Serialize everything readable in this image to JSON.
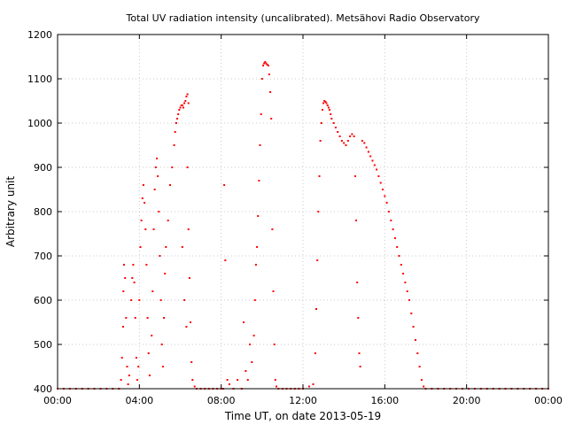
{
  "chart_data": {
    "type": "scatter",
    "title": "Total UV radiation intensity (uncalibrated). Metsähovi Radio Observatory",
    "xlabel": "Time UT, on date 2013-05-19",
    "ylabel": "Arbitrary unit",
    "x_unit": "hours UT",
    "xlim": [
      0,
      24
    ],
    "ylim": [
      400,
      1200
    ],
    "x_ticks": [
      0,
      4,
      8,
      12,
      16,
      20,
      24
    ],
    "x_tick_labels": [
      "00:00",
      "04:00",
      "08:00",
      "12:00",
      "16:00",
      "20:00",
      "00:00"
    ],
    "y_ticks": [
      400,
      500,
      600,
      700,
      800,
      900,
      1000,
      1100,
      1200
    ],
    "y_tick_labels": [
      "400",
      "500",
      "600",
      "700",
      "800",
      "900",
      "1000",
      "1100",
      "1200"
    ],
    "grid": true,
    "marker_color": "#ff0000",
    "series": [
      {
        "points": [
          [
            0.0,
            400
          ],
          [
            0.3,
            400
          ],
          [
            0.6,
            400
          ],
          [
            0.9,
            400
          ],
          [
            1.2,
            400
          ],
          [
            1.5,
            400
          ],
          [
            1.8,
            400
          ],
          [
            2.1,
            400
          ],
          [
            2.4,
            400
          ],
          [
            2.7,
            400
          ],
          [
            3.0,
            400
          ],
          [
            3.1,
            420
          ],
          [
            3.15,
            470
          ],
          [
            3.2,
            540
          ],
          [
            3.22,
            620
          ],
          [
            3.25,
            680
          ],
          [
            3.3,
            650
          ],
          [
            3.35,
            560
          ],
          [
            3.4,
            450
          ],
          [
            3.45,
            410
          ],
          [
            3.5,
            430
          ],
          [
            3.6,
            600
          ],
          [
            3.65,
            650
          ],
          [
            3.7,
            680
          ],
          [
            3.75,
            640
          ],
          [
            3.8,
            560
          ],
          [
            3.85,
            470
          ],
          [
            3.9,
            420
          ],
          [
            3.95,
            450
          ],
          [
            4.0,
            600
          ],
          [
            4.05,
            720
          ],
          [
            4.1,
            780
          ],
          [
            4.15,
            830
          ],
          [
            4.2,
            860
          ],
          [
            4.25,
            820
          ],
          [
            4.3,
            760
          ],
          [
            4.35,
            680
          ],
          [
            4.4,
            560
          ],
          [
            4.45,
            480
          ],
          [
            4.5,
            430
          ],
          [
            4.6,
            520
          ],
          [
            4.65,
            620
          ],
          [
            4.7,
            760
          ],
          [
            4.75,
            850
          ],
          [
            4.8,
            900
          ],
          [
            4.85,
            920
          ],
          [
            4.9,
            880
          ],
          [
            4.95,
            800
          ],
          [
            5.0,
            700
          ],
          [
            5.05,
            600
          ],
          [
            5.1,
            500
          ],
          [
            5.15,
            450
          ],
          [
            5.2,
            560
          ],
          [
            5.25,
            660
          ],
          [
            5.3,
            720
          ],
          [
            5.4,
            780
          ],
          [
            5.5,
            860
          ],
          [
            5.6,
            900
          ],
          [
            5.7,
            950
          ],
          [
            5.75,
            980
          ],
          [
            5.8,
            1000
          ],
          [
            5.85,
            1010
          ],
          [
            5.9,
            1020
          ],
          [
            5.95,
            1030
          ],
          [
            6.0,
            1035
          ],
          [
            6.05,
            1040
          ],
          [
            6.1,
            1040
          ],
          [
            6.15,
            1035
          ],
          [
            6.2,
            1045
          ],
          [
            6.25,
            1050
          ],
          [
            6.3,
            1060
          ],
          [
            6.35,
            1065
          ],
          [
            6.4,
            1045
          ],
          [
            6.1,
            720
          ],
          [
            6.2,
            600
          ],
          [
            6.3,
            540
          ],
          [
            6.35,
            900
          ],
          [
            6.4,
            760
          ],
          [
            6.45,
            650
          ],
          [
            6.5,
            550
          ],
          [
            6.55,
            460
          ],
          [
            6.6,
            420
          ],
          [
            6.7,
            405
          ],
          [
            6.8,
            400
          ],
          [
            7.0,
            400
          ],
          [
            7.2,
            400
          ],
          [
            7.4,
            400
          ],
          [
            7.6,
            400
          ],
          [
            7.8,
            400
          ],
          [
            8.0,
            400
          ],
          [
            8.1,
            400
          ],
          [
            8.15,
            860
          ],
          [
            8.2,
            690
          ],
          [
            8.3,
            420
          ],
          [
            8.4,
            410
          ],
          [
            8.6,
            400
          ],
          [
            8.8,
            420
          ],
          [
            9.0,
            400
          ],
          [
            9.1,
            550
          ],
          [
            9.2,
            440
          ],
          [
            9.3,
            420
          ],
          [
            9.4,
            500
          ],
          [
            9.5,
            460
          ],
          [
            9.6,
            520
          ],
          [
            9.65,
            600
          ],
          [
            9.7,
            680
          ],
          [
            9.75,
            720
          ],
          [
            9.8,
            790
          ],
          [
            9.85,
            870
          ],
          [
            9.9,
            950
          ],
          [
            9.95,
            1020
          ],
          [
            10.0,
            1100
          ],
          [
            10.05,
            1130
          ],
          [
            10.1,
            1135
          ],
          [
            10.15,
            1138
          ],
          [
            10.2,
            1135
          ],
          [
            10.25,
            1132
          ],
          [
            10.3,
            1130
          ],
          [
            10.35,
            1110
          ],
          [
            10.4,
            1070
          ],
          [
            10.45,
            1010
          ],
          [
            10.5,
            760
          ],
          [
            10.55,
            620
          ],
          [
            10.6,
            500
          ],
          [
            10.65,
            420
          ],
          [
            10.7,
            405
          ],
          [
            10.8,
            400
          ],
          [
            11.0,
            400
          ],
          [
            11.2,
            400
          ],
          [
            11.4,
            400
          ],
          [
            11.6,
            400
          ],
          [
            11.8,
            400
          ],
          [
            12.0,
            400
          ],
          [
            12.3,
            405
          ],
          [
            12.5,
            410
          ],
          [
            12.6,
            480
          ],
          [
            12.65,
            580
          ],
          [
            12.7,
            690
          ],
          [
            12.75,
            800
          ],
          [
            12.8,
            880
          ],
          [
            12.85,
            960
          ],
          [
            12.9,
            1000
          ],
          [
            12.95,
            1030
          ],
          [
            13.0,
            1045
          ],
          [
            13.05,
            1050
          ],
          [
            13.1,
            1048
          ],
          [
            13.15,
            1045
          ],
          [
            13.2,
            1040
          ],
          [
            13.25,
            1035
          ],
          [
            13.3,
            1030
          ],
          [
            13.35,
            1020
          ],
          [
            13.4,
            1010
          ],
          [
            13.5,
            1000
          ],
          [
            13.6,
            990
          ],
          [
            13.7,
            980
          ],
          [
            13.8,
            970
          ],
          [
            13.9,
            960
          ],
          [
            14.0,
            955
          ],
          [
            14.1,
            950
          ],
          [
            14.2,
            960
          ],
          [
            14.3,
            970
          ],
          [
            14.4,
            975
          ],
          [
            14.5,
            970
          ],
          [
            14.55,
            880
          ],
          [
            14.6,
            780
          ],
          [
            14.65,
            640
          ],
          [
            14.7,
            560
          ],
          [
            14.75,
            480
          ],
          [
            14.8,
            450
          ],
          [
            14.9,
            960
          ],
          [
            15.0,
            955
          ],
          [
            15.1,
            945
          ],
          [
            15.2,
            935
          ],
          [
            15.3,
            925
          ],
          [
            15.4,
            915
          ],
          [
            15.5,
            905
          ],
          [
            15.6,
            895
          ],
          [
            15.7,
            880
          ],
          [
            15.8,
            865
          ],
          [
            15.9,
            850
          ],
          [
            16.0,
            835
          ],
          [
            16.1,
            820
          ],
          [
            16.2,
            800
          ],
          [
            16.3,
            780
          ],
          [
            16.4,
            760
          ],
          [
            16.5,
            740
          ],
          [
            16.6,
            720
          ],
          [
            16.7,
            700
          ],
          [
            16.8,
            680
          ],
          [
            16.9,
            660
          ],
          [
            17.0,
            640
          ],
          [
            17.1,
            620
          ],
          [
            17.2,
            600
          ],
          [
            17.3,
            570
          ],
          [
            17.4,
            540
          ],
          [
            17.5,
            510
          ],
          [
            17.6,
            480
          ],
          [
            17.7,
            450
          ],
          [
            17.8,
            420
          ],
          [
            17.9,
            405
          ],
          [
            18.0,
            400
          ],
          [
            18.3,
            400
          ],
          [
            18.6,
            400
          ],
          [
            18.9,
            400
          ],
          [
            19.2,
            400
          ],
          [
            19.5,
            400
          ],
          [
            19.8,
            400
          ],
          [
            20.1,
            400
          ],
          [
            20.4,
            400
          ],
          [
            20.7,
            400
          ],
          [
            21.0,
            400
          ],
          [
            21.3,
            400
          ],
          [
            21.6,
            400
          ],
          [
            21.9,
            400
          ],
          [
            22.2,
            400
          ],
          [
            22.5,
            400
          ],
          [
            22.8,
            400
          ],
          [
            23.1,
            400
          ],
          [
            23.4,
            400
          ],
          [
            23.7,
            400
          ],
          [
            24.0,
            400
          ]
        ]
      }
    ]
  }
}
